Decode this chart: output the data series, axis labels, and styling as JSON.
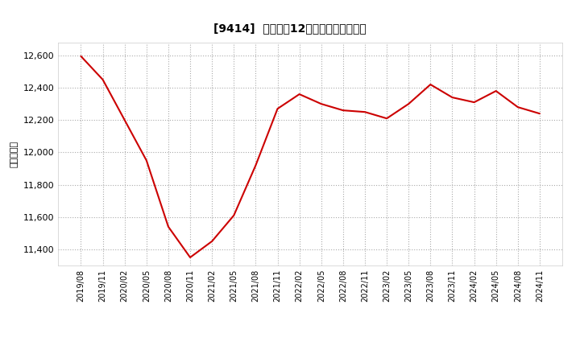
{
  "title": "[9414]  売上高の12か月移動合計の推移",
  "ylabel": "（百万円）",
  "line_color": "#cc0000",
  "bg_color": "#ffffff",
  "plot_bg_color": "#ffffff",
  "grid_color": "#aaaaaa",
  "ylim": [
    11300,
    12680
  ],
  "yticks": [
    11400,
    11600,
    11800,
    12000,
    12200,
    12400,
    12600
  ],
  "x_labels": [
    "2019/08",
    "2019/11",
    "2020/02",
    "2020/05",
    "2020/08",
    "2020/11",
    "2021/02",
    "2021/05",
    "2021/08",
    "2021/11",
    "2022/02",
    "2022/05",
    "2022/08",
    "2022/11",
    "2023/02",
    "2023/05",
    "2023/08",
    "2023/11",
    "2024/02",
    "2024/05",
    "2024/08",
    "2024/11"
  ],
  "values": [
    12595,
    12450,
    12200,
    11950,
    11540,
    11350,
    11450,
    11610,
    11920,
    12270,
    12360,
    12300,
    12260,
    12250,
    12210,
    12300,
    12420,
    12340,
    12310,
    12380,
    12280,
    12240
  ]
}
